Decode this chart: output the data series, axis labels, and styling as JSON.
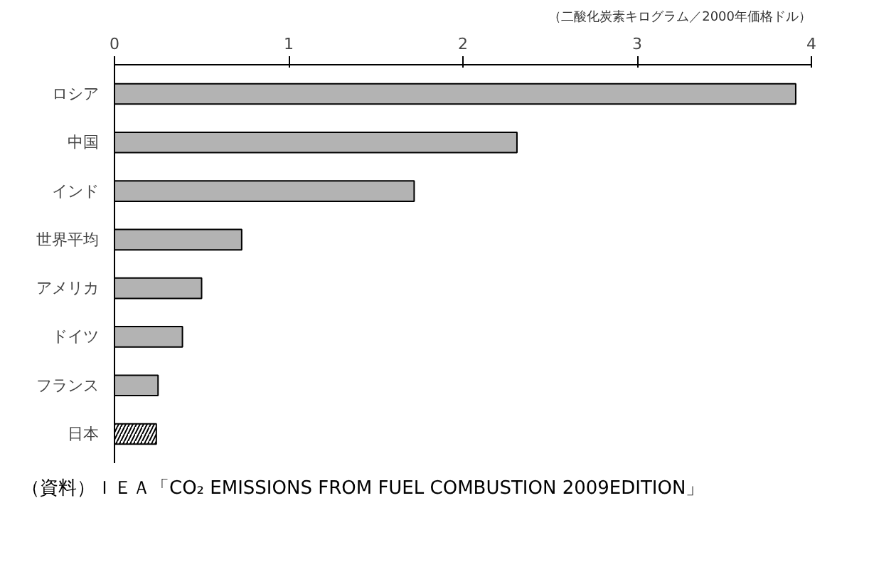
{
  "chart_data": {
    "type": "bar",
    "orientation": "horizontal",
    "xlabel": "（二酸化炭素キログラム／2000年価格ドル）",
    "categories": [
      "ロシア",
      "中国",
      "インド",
      "世界平均",
      "アメリカ",
      "ドイツ",
      "フランス",
      "日本"
    ],
    "values": [
      3.91,
      2.31,
      1.72,
      0.73,
      0.5,
      0.39,
      0.25,
      0.24
    ],
    "colors": [
      "#b3b3b3",
      "#b3b3b3",
      "#b3b3b3",
      "#b3b3b3",
      "#b3b3b3",
      "#b3b3b3",
      "#b3b3b3",
      "#ffffff"
    ],
    "xlim": [
      0,
      4
    ],
    "xticks": [
      0,
      1,
      2,
      3,
      4
    ],
    "grid": false,
    "annotations": [
      "（資料）ＩＥＡ「CO₂ EMISSIONS FROM FUEL COMBUSTION 2009EDITION」"
    ]
  }
}
